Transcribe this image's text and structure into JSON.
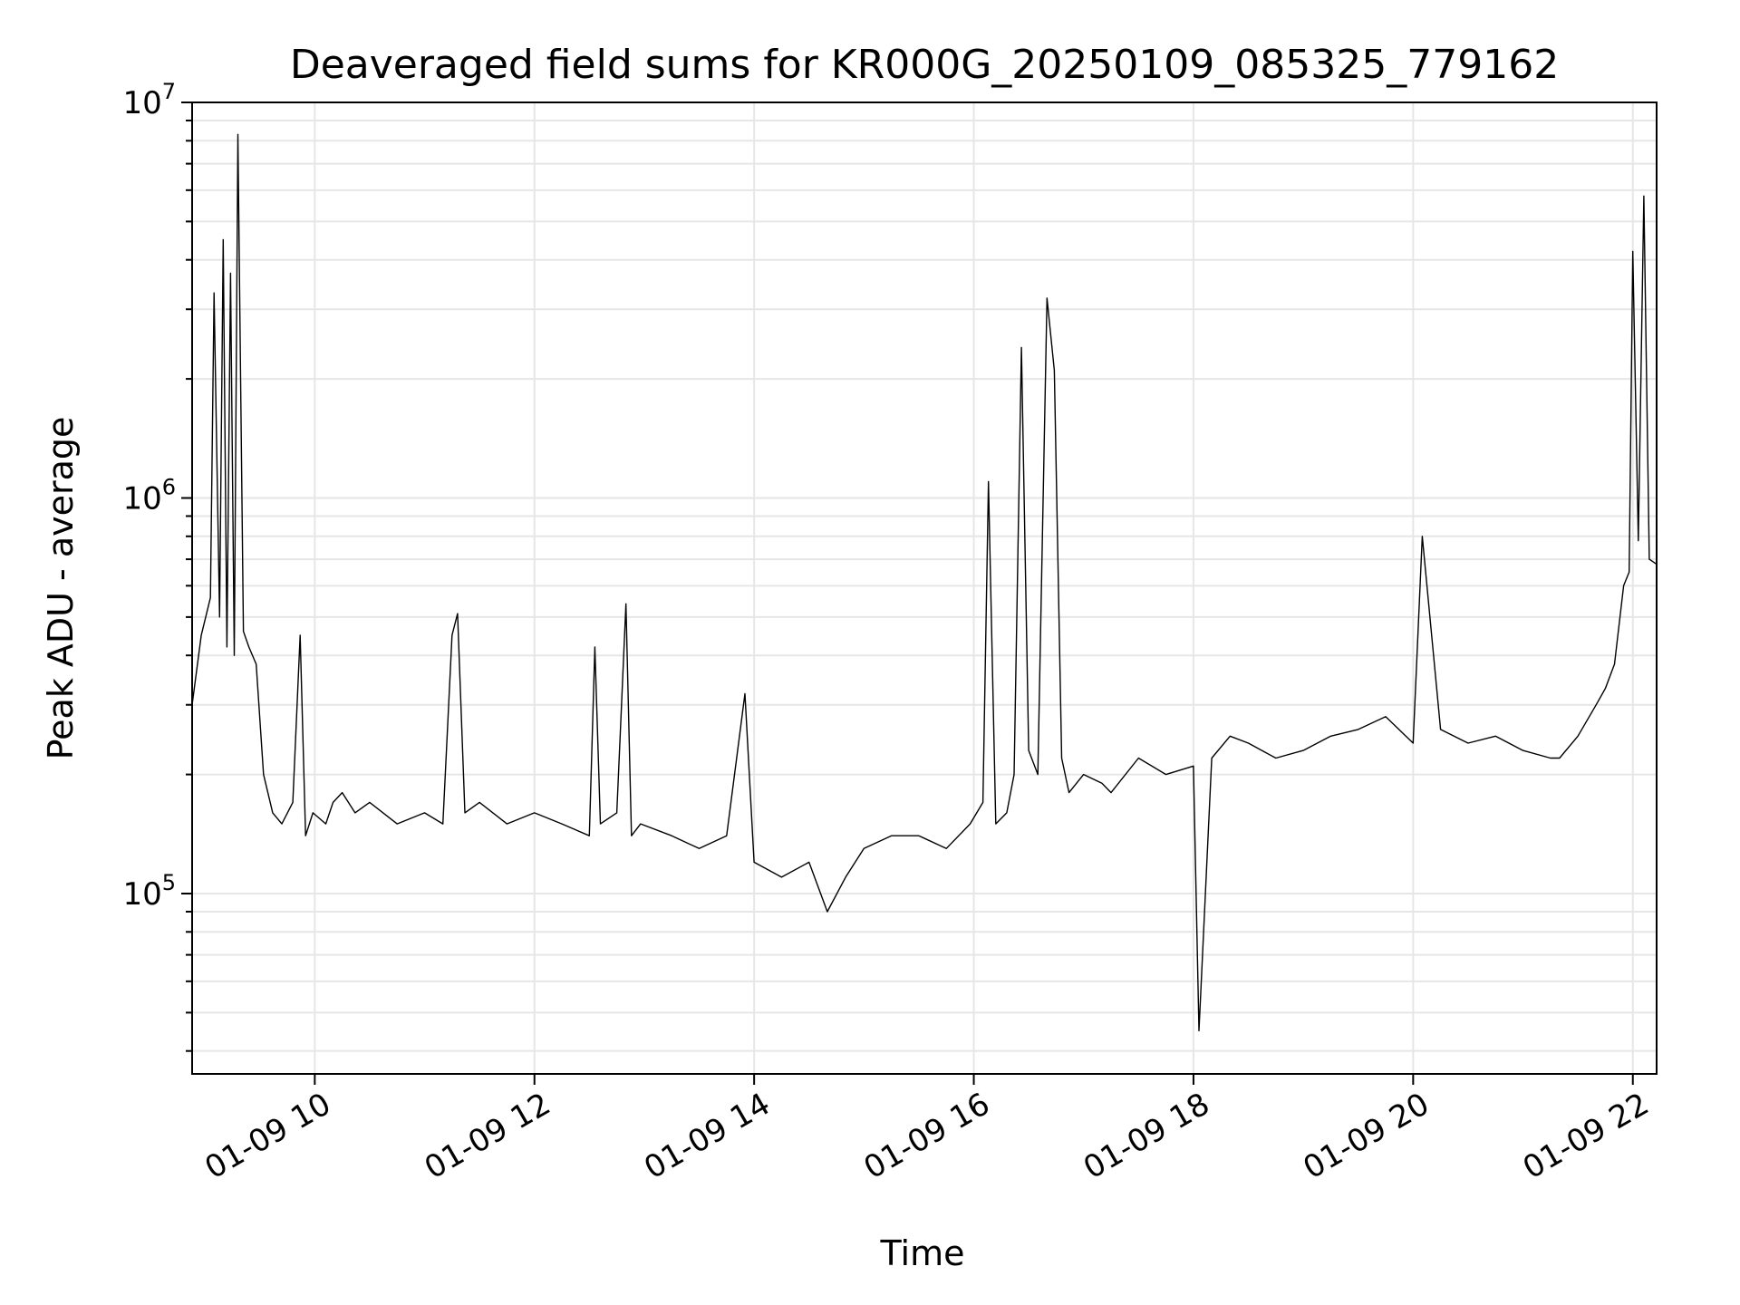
{
  "chart_data": {
    "type": "line",
    "title": "Deaveraged field sums for KR000G_20250109_085325_779162",
    "xlabel": "Time",
    "ylabel": "Peak ADU - average",
    "yscale": "log",
    "ylim": [
      35000,
      10000000
    ],
    "xlim": [
      "2025-01-09 08:53",
      "2025-01-09 22:13"
    ],
    "grid": "major and minor",
    "x_ticks": [
      {
        "value": "2025-01-09 10:00",
        "label": "01-09 10"
      },
      {
        "value": "2025-01-09 12:00",
        "label": "01-09 12"
      },
      {
        "value": "2025-01-09 14:00",
        "label": "01-09 14"
      },
      {
        "value": "2025-01-09 16:00",
        "label": "01-09 16"
      },
      {
        "value": "2025-01-09 18:00",
        "label": "01-09 18"
      },
      {
        "value": "2025-01-09 20:00",
        "label": "01-09 20"
      },
      {
        "value": "2025-01-09 22:00",
        "label": "01-09 22"
      }
    ],
    "y_ticks": [
      {
        "value": 100000,
        "base": "10",
        "exponent": "5"
      },
      {
        "value": 1000000,
        "base": "10",
        "exponent": "6"
      },
      {
        "value": 10000000,
        "base": "10",
        "exponent": "7"
      }
    ],
    "series": [
      {
        "color": "#000000",
        "x": [
          "2025-01-09 08:53",
          "2025-01-09 08:58",
          "2025-01-09 09:03",
          "2025-01-09 09:05",
          "2025-01-09 09:08",
          "2025-01-09 09:10",
          "2025-01-09 09:12",
          "2025-01-09 09:14",
          "2025-01-09 09:16",
          "2025-01-09 09:18",
          "2025-01-09 09:21",
          "2025-01-09 09:24",
          "2025-01-09 09:28",
          "2025-01-09 09:32",
          "2025-01-09 09:37",
          "2025-01-09 09:42",
          "2025-01-09 09:48",
          "2025-01-09 09:52",
          "2025-01-09 09:55",
          "2025-01-09 09:59",
          "2025-01-09 10:06",
          "2025-01-09 10:10",
          "2025-01-09 10:15",
          "2025-01-09 10:22",
          "2025-01-09 10:30",
          "2025-01-09 10:45",
          "2025-01-09 11:00",
          "2025-01-09 11:10",
          "2025-01-09 11:15",
          "2025-01-09 11:18",
          "2025-01-09 11:22",
          "2025-01-09 11:30",
          "2025-01-09 11:45",
          "2025-01-09 12:00",
          "2025-01-09 12:15",
          "2025-01-09 12:30",
          "2025-01-09 12:33",
          "2025-01-09 12:36",
          "2025-01-09 12:45",
          "2025-01-09 12:50",
          "2025-01-09 12:53",
          "2025-01-09 12:58",
          "2025-01-09 13:15",
          "2025-01-09 13:30",
          "2025-01-09 13:45",
          "2025-01-09 13:55",
          "2025-01-09 14:00",
          "2025-01-09 14:15",
          "2025-01-09 14:30",
          "2025-01-09 14:40",
          "2025-01-09 14:50",
          "2025-01-09 15:00",
          "2025-01-09 15:15",
          "2025-01-09 15:30",
          "2025-01-09 15:45",
          "2025-01-09 15:58",
          "2025-01-09 16:05",
          "2025-01-09 16:08",
          "2025-01-09 16:12",
          "2025-01-09 16:18",
          "2025-01-09 16:22",
          "2025-01-09 16:26",
          "2025-01-09 16:30",
          "2025-01-09 16:35",
          "2025-01-09 16:40",
          "2025-01-09 16:44",
          "2025-01-09 16:48",
          "2025-01-09 16:52",
          "2025-01-09 17:00",
          "2025-01-09 17:10",
          "2025-01-09 17:15",
          "2025-01-09 17:30",
          "2025-01-09 17:45",
          "2025-01-09 18:00",
          "2025-01-09 18:03",
          "2025-01-09 18:10",
          "2025-01-09 18:20",
          "2025-01-09 18:30",
          "2025-01-09 18:45",
          "2025-01-09 19:00",
          "2025-01-09 19:15",
          "2025-01-09 19:30",
          "2025-01-09 19:45",
          "2025-01-09 20:00",
          "2025-01-09 20:05",
          "2025-01-09 20:15",
          "2025-01-09 20:30",
          "2025-01-09 20:45",
          "2025-01-09 21:00",
          "2025-01-09 21:15",
          "2025-01-09 21:20",
          "2025-01-09 21:30",
          "2025-01-09 21:40",
          "2025-01-09 21:45",
          "2025-01-09 21:50",
          "2025-01-09 21:55",
          "2025-01-09 21:58",
          "2025-01-09 22:00",
          "2025-01-09 22:03",
          "2025-01-09 22:06",
          "2025-01-09 22:09",
          "2025-01-09 22:13"
        ],
        "y": [
          300000,
          450000,
          560000,
          3300000,
          500000,
          4500000,
          420000,
          3700000,
          400000,
          8300000,
          460000,
          420000,
          380000,
          200000,
          160000,
          150000,
          170000,
          450000,
          140000,
          160000,
          150000,
          170000,
          180000,
          160000,
          170000,
          150000,
          160000,
          150000,
          450000,
          510000,
          160000,
          170000,
          150000,
          160000,
          150000,
          140000,
          420000,
          150000,
          160000,
          540000,
          140000,
          150000,
          140000,
          130000,
          140000,
          320000,
          120000,
          110000,
          120000,
          90000,
          110000,
          130000,
          140000,
          140000,
          130000,
          150000,
          170000,
          1100000,
          150000,
          160000,
          200000,
          2400000,
          230000,
          200000,
          3200000,
          2100000,
          220000,
          180000,
          200000,
          190000,
          180000,
          220000,
          200000,
          210000,
          45000,
          220000,
          250000,
          240000,
          220000,
          230000,
          250000,
          260000,
          280000,
          240000,
          800000,
          260000,
          240000,
          250000,
          230000,
          220000,
          220000,
          250000,
          300000,
          330000,
          380000,
          600000,
          650000,
          4200000,
          780000,
          5800000,
          700000,
          680000
        ]
      }
    ]
  }
}
